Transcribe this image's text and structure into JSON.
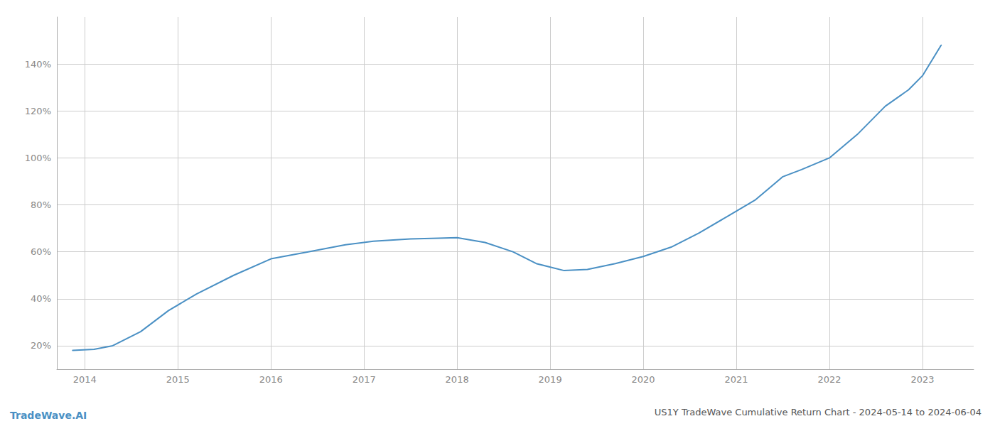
{
  "chart_data": {
    "type": "line",
    "title": "US1Y TradeWave Cumulative Return Chart - 2024-05-14 to 2024-06-04",
    "annotations": [
      "TradeWave.AI"
    ],
    "color": "#4a90c4",
    "x": [
      2013.87,
      2014.1,
      2014.3,
      2014.6,
      2014.9,
      2015.2,
      2015.6,
      2016.0,
      2016.4,
      2016.8,
      2017.1,
      2017.5,
      2017.8,
      2018.0,
      2018.3,
      2018.6,
      2018.85,
      2019.15,
      2019.4,
      2019.7,
      2020.0,
      2020.3,
      2020.6,
      2020.9,
      2021.2,
      2021.5,
      2021.7,
      2022.0,
      2022.3,
      2022.6,
      2022.85,
      2023.0,
      2023.2
    ],
    "values": [
      18,
      18.5,
      20,
      26,
      35,
      42,
      50,
      57,
      60,
      63,
      64.5,
      65.5,
      65.8,
      66,
      64,
      60,
      55,
      52,
      52.5,
      55,
      58,
      62,
      68,
      75,
      82,
      92,
      95,
      100,
      110,
      122,
      129,
      135,
      148
    ],
    "xlim": [
      2013.7,
      2023.55
    ],
    "xticks": [
      2014,
      2015,
      2016,
      2017,
      2018,
      2019,
      2020,
      2021,
      2022,
      2023
    ],
    "ylim": [
      10,
      160
    ],
    "yticks": [
      {
        "value": 20,
        "label": "20%"
      },
      {
        "value": 40,
        "label": "40%"
      },
      {
        "value": 60,
        "label": "60%"
      },
      {
        "value": 80,
        "label": "80%"
      },
      {
        "value": 100,
        "label": "100%"
      },
      {
        "value": 120,
        "label": "120%"
      },
      {
        "value": 140,
        "label": "140%"
      }
    ],
    "grid": true
  }
}
